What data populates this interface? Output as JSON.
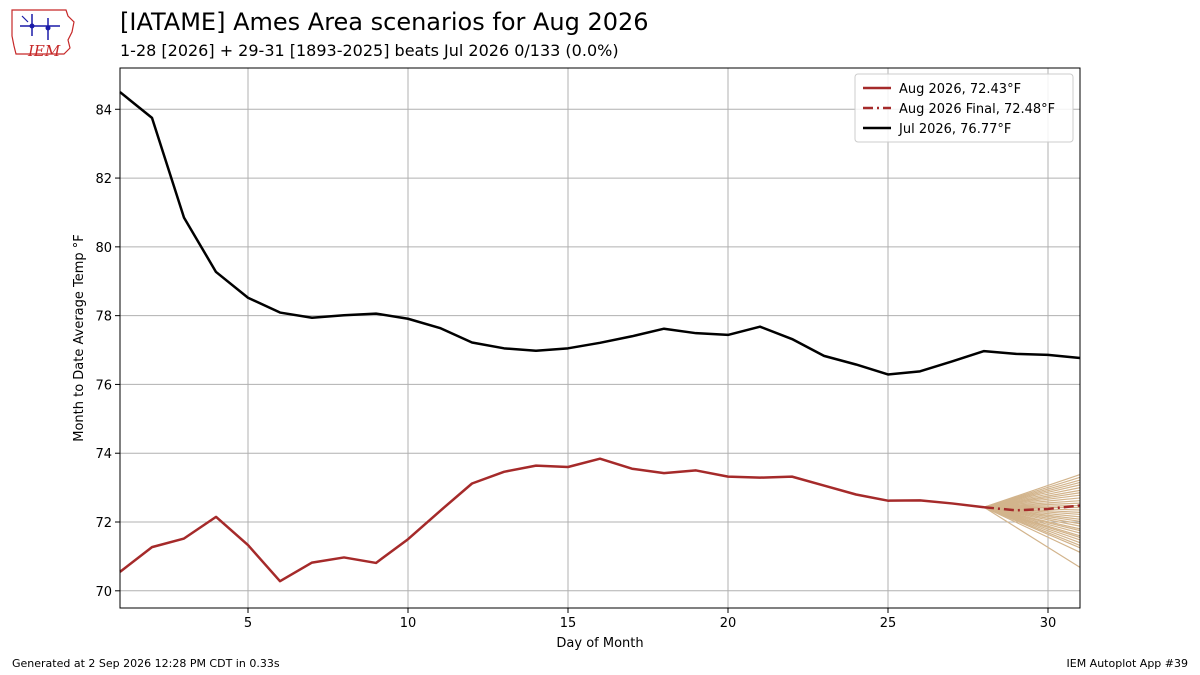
{
  "header": {
    "title": "[IATAME] Ames Area scenarios for Aug 2026",
    "subtitle": "1-28 [2026] + 29-31 [1893-2025] beats Jul 2026 0/133 (0.0%)"
  },
  "logo": {
    "text": "IEM"
  },
  "footer": {
    "generated": "Generated at 2 Sep 2026 12:28 PM CDT in 0.33s",
    "app": "IEM Autoplot App #39"
  },
  "chart_data": {
    "type": "line",
    "xlabel": "Day of Month",
    "ylabel": "Month to Date Average Temp °F",
    "xlim": [
      1,
      31
    ],
    "ylim": [
      69.5,
      85.2
    ],
    "xticks": [
      5,
      10,
      15,
      20,
      25,
      30
    ],
    "yticks": [
      70,
      72,
      74,
      76,
      78,
      80,
      82,
      84
    ],
    "grid": true,
    "legend_position": "top-right",
    "series": [
      {
        "name": "Aug 2026, 72.43°F",
        "style": "solid",
        "color": "#a52a2a",
        "x": [
          1,
          2,
          3,
          4,
          5,
          6,
          7,
          8,
          9,
          10,
          11,
          12,
          13,
          14,
          15,
          16,
          17,
          18,
          19,
          20,
          21,
          22,
          23,
          24,
          25,
          26,
          27,
          28
        ],
        "y": [
          70.55,
          71.27,
          71.52,
          72.15,
          71.33,
          70.28,
          70.82,
          70.97,
          70.81,
          71.5,
          72.32,
          73.12,
          73.46,
          73.64,
          73.6,
          73.84,
          73.55,
          73.42,
          73.5,
          73.32,
          73.29,
          73.32,
          73.06,
          72.8,
          72.62,
          72.63,
          72.54,
          72.43
        ]
      },
      {
        "name": "Aug 2026 Final, 72.48°F",
        "style": "dashdot",
        "color": "#a52a2a",
        "x": [
          28,
          29,
          30,
          31
        ],
        "y": [
          72.43,
          72.34,
          72.38,
          72.48
        ]
      },
      {
        "name": "Jul 2026, 76.77°F",
        "style": "solid",
        "color": "#000000",
        "x": [
          1,
          2,
          3,
          4,
          5,
          6,
          7,
          8,
          9,
          10,
          11,
          12,
          13,
          14,
          15,
          16,
          17,
          18,
          19,
          20,
          21,
          22,
          23,
          24,
          25,
          26,
          27,
          28,
          29,
          30,
          31
        ],
        "y": [
          84.5,
          83.75,
          80.85,
          79.27,
          78.52,
          78.09,
          77.94,
          78.01,
          78.06,
          77.91,
          77.64,
          77.22,
          77.05,
          76.98,
          77.05,
          77.21,
          77.4,
          77.62,
          77.49,
          77.44,
          77.68,
          77.32,
          76.83,
          76.58,
          76.29,
          76.38,
          76.67,
          76.97,
          76.89,
          76.86,
          76.77
        ]
      }
    ],
    "scenarios": {
      "color": "#d2b48c",
      "x": [
        28,
        29,
        30,
        31
      ],
      "start": 72.43,
      "end_values": [
        70.68,
        71.12,
        71.25,
        71.32,
        71.4,
        71.48,
        71.55,
        71.6,
        71.68,
        71.75,
        71.8,
        71.88,
        71.95,
        72.02,
        72.08,
        72.15,
        72.22,
        72.28,
        72.35,
        72.42,
        72.48,
        72.55,
        72.62,
        72.7,
        72.78,
        72.85,
        72.92,
        73.0,
        73.08,
        73.15,
        73.22,
        73.3,
        73.38
      ]
    }
  }
}
